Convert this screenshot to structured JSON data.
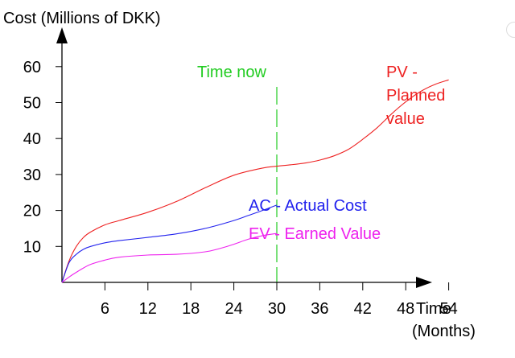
{
  "chart_data": {
    "type": "line",
    "ylabel": "Cost (Millions of DKK)",
    "xlabel_line1": "Time",
    "xlabel_line2": "(Months)",
    "x_ticks": [
      6,
      12,
      18,
      24,
      30,
      36,
      42,
      48,
      54
    ],
    "y_ticks": [
      10,
      20,
      30,
      40,
      50,
      60
    ],
    "xlim": [
      0,
      62
    ],
    "ylim": [
      0,
      67
    ],
    "time_now": {
      "x": 30,
      "label": "Time now",
      "color": "#22cc22"
    },
    "series": [
      {
        "name": "PV",
        "label_lines": [
          "PV -",
          "Planned",
          "value"
        ],
        "color": "#ee2222",
        "x": [
          0,
          1,
          2,
          3,
          4,
          6,
          8,
          12,
          16,
          20,
          24,
          28,
          30,
          32,
          34,
          36,
          38,
          40,
          42,
          44,
          46,
          48,
          50,
          52,
          54
        ],
        "values": [
          0,
          6,
          10,
          12.5,
          14,
          16,
          17.2,
          19.5,
          22.5,
          26.3,
          29.8,
          31.8,
          32.3,
          32.7,
          33.2,
          34,
          35.2,
          37,
          39.8,
          43,
          46.8,
          50.2,
          53,
          55,
          56.3
        ]
      },
      {
        "name": "AC",
        "label": "AC - Actual Cost",
        "color": "#2222ee",
        "x": [
          0,
          1,
          2,
          3,
          4,
          6,
          8,
          12,
          16,
          20,
          24,
          26,
          28,
          30
        ],
        "values": [
          0,
          5.5,
          7.8,
          9.2,
          10,
          11,
          11.6,
          12.5,
          13.5,
          15,
          17.2,
          18.6,
          20,
          21.5
        ]
      },
      {
        "name": "EV",
        "label": "EV - Earned Value",
        "color": "#ee22ee",
        "x": [
          0,
          1,
          2,
          3,
          4,
          6,
          8,
          12,
          16,
          20,
          22,
          24,
          26,
          28,
          30
        ],
        "values": [
          0,
          1.5,
          2.8,
          4,
          5,
          6.2,
          7,
          7.6,
          7.8,
          8.5,
          9.4,
          10.6,
          12,
          13,
          13.6
        ]
      }
    ]
  }
}
